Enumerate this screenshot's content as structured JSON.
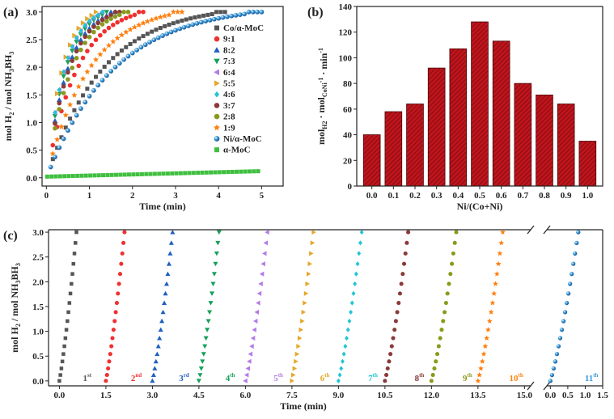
{
  "chart_data": [
    {
      "panel_label": "(a)",
      "type": "scatter",
      "xlabel": "Time (min)",
      "ylabel_parts": [
        "mol H",
        "2",
        " / mol NH",
        "3",
        "BH",
        "3"
      ],
      "xlim": [
        -0.1,
        5.5
      ],
      "ylim": [
        -0.15,
        3.1
      ],
      "x_ticks": [
        "0",
        "1",
        "2",
        "3",
        "4",
        "5"
      ],
      "y_ticks": [
        "0.0",
        "0.5",
        "1.0",
        "1.5",
        "2.0",
        "2.5",
        "3.0"
      ],
      "series": [
        {
          "name": "Co/α-MoC",
          "marker": "square",
          "color": "#555555",
          "end_time": 4.2,
          "max": 3.0,
          "start": 0.15,
          "interval": 0.1
        },
        {
          "name": "9:1",
          "marker": "circle",
          "color": "#f03030",
          "end_time": 2.3,
          "max": 3.0,
          "start": 0.15,
          "interval": 0.1
        },
        {
          "name": "8:2",
          "marker": "triangle-up",
          "color": "#1f5fbf",
          "end_time": 1.6,
          "max": 3.0,
          "start": 0.2,
          "interval": 0.1
        },
        {
          "name": "7:3",
          "marker": "triangle-down",
          "color": "#16a05a",
          "end_time": 1.45,
          "max": 3.0,
          "start": 0.2,
          "interval": 0.1
        },
        {
          "name": "6:4",
          "marker": "triangle-left",
          "color": "#b37be6",
          "end_time": 1.35,
          "max": 3.0,
          "start": 0.2,
          "interval": 0.1
        },
        {
          "name": "5:5",
          "marker": "triangle-right",
          "color": "#e6a72c",
          "end_time": 1.2,
          "max": 3.0,
          "start": 0.25,
          "interval": 0.1
        },
        {
          "name": "4:6",
          "marker": "diamond",
          "color": "#22c4d4",
          "end_time": 1.35,
          "max": 3.0,
          "start": 0.2,
          "interval": 0.1
        },
        {
          "name": "3:7",
          "marker": "hexagon",
          "color": "#8b3a3a",
          "end_time": 1.7,
          "max": 3.0,
          "start": 0.2,
          "interval": 0.1
        },
        {
          "name": "2:8",
          "marker": "circle",
          "color": "#8a9a1b",
          "end_time": 1.9,
          "max": 3.0,
          "start": 0.2,
          "interval": 0.1
        },
        {
          "name": "1:9",
          "marker": "star",
          "color": "#ff7f0e",
          "end_time": 3.2,
          "max": 3.0,
          "start": 0.15,
          "interval": 0.1
        },
        {
          "name": "Ni/α-MoC",
          "marker": "sphere",
          "color": "#3a9ad9",
          "end_time": 5.0,
          "max": 3.0,
          "start": 0.1,
          "interval": 0.1
        },
        {
          "name": "α-MoC",
          "marker": "square",
          "color": "#3fbf3f",
          "end_time": 5.0,
          "max": 0.12,
          "start": 0.02,
          "interval": 0.1,
          "linear": true
        }
      ]
    },
    {
      "panel_label": "(b)",
      "type": "bar",
      "xlabel": "Ni/(Co+Ni)",
      "ylabel_parts": [
        "mol",
        "H2",
        " · mol",
        "CoNi",
        "-1",
        " · min",
        "-1"
      ],
      "ylim": [
        0,
        140
      ],
      "y_ticks": [
        "0",
        "20",
        "40",
        "60",
        "80",
        "100",
        "120",
        "140"
      ],
      "categories": [
        "0.0",
        "0.1",
        "0.2",
        "0.3",
        "0.4",
        "0.5",
        "0.6",
        "0.7",
        "0.8",
        "0.9",
        "1.0"
      ],
      "values": [
        40,
        58,
        64,
        92,
        107,
        128,
        113,
        80,
        71,
        64,
        35
      ],
      "bar_color": "#c0141c"
    },
    {
      "panel_label": "(c)",
      "type": "scatter",
      "xlabel": "Time (min)",
      "ylabel_parts": [
        "mol H",
        "2",
        " / mol NH",
        "3",
        "BH",
        "3"
      ],
      "y_ticks": [
        "0.0",
        "0.5",
        "1.0",
        "1.5",
        "2.0",
        "2.5",
        "3.0"
      ],
      "ylim": [
        -0.1,
        3.05
      ],
      "segment1": {
        "xlim": [
          -0.35,
          15.2
        ],
        "x_ticks": [
          "0.0",
          "1.5",
          "3.0",
          "4.5",
          "6.0",
          "7.5",
          "9.0",
          "10.5",
          "12.0",
          "13.5",
          "15.0"
        ]
      },
      "segment2": {
        "xlim": [
          -0.1,
          1.5
        ],
        "x_ticks": [
          "0.0",
          "0.5",
          "1.0",
          "1.5"
        ]
      },
      "runs": [
        {
          "label": "1",
          "sup": "st",
          "start": 0.0,
          "duration": 0.55,
          "color": "#555555",
          "marker": "square"
        },
        {
          "label": "2",
          "sup": "nd",
          "start": 1.5,
          "duration": 0.6,
          "color": "#f03030",
          "marker": "circle"
        },
        {
          "label": "3",
          "sup": "rd",
          "start": 3.0,
          "duration": 0.65,
          "color": "#1f5fbf",
          "marker": "triangle-up"
        },
        {
          "label": "4",
          "sup": "th",
          "start": 4.5,
          "duration": 0.65,
          "color": "#16a05a",
          "marker": "triangle-down"
        },
        {
          "label": "5",
          "sup": "th",
          "start": 6.0,
          "duration": 0.7,
          "color": "#b37be6",
          "marker": "triangle-left"
        },
        {
          "label": "6",
          "sup": "th",
          "start": 7.5,
          "duration": 0.7,
          "color": "#e6a72c",
          "marker": "triangle-right"
        },
        {
          "label": "7",
          "sup": "th",
          "start": 9.0,
          "duration": 0.75,
          "color": "#22c4d4",
          "marker": "diamond"
        },
        {
          "label": "8",
          "sup": "th",
          "start": 10.5,
          "duration": 0.75,
          "color": "#8b3a3a",
          "marker": "hexagon"
        },
        {
          "label": "9",
          "sup": "th",
          "start": 12.0,
          "duration": 0.8,
          "color": "#8a9a1b",
          "marker": "circle"
        },
        {
          "label": "10",
          "sup": "th",
          "start": 13.5,
          "duration": 0.8,
          "color": "#ff7f0e",
          "marker": "star"
        },
        {
          "label": "11",
          "sup": "th",
          "start": 0.0,
          "duration": 0.8,
          "color": "#3a9ad9",
          "marker": "sphere",
          "segment": 2
        }
      ]
    }
  ]
}
